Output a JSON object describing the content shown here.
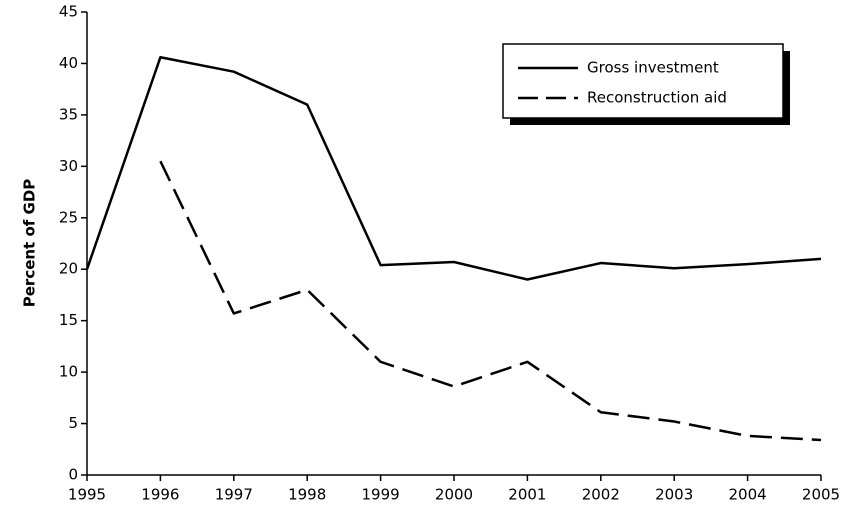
{
  "chart_data": {
    "type": "line",
    "ylabel": "Percent of GDP",
    "x": [
      1995,
      1996,
      1997,
      1998,
      1999,
      2000,
      2001,
      2002,
      2003,
      2004,
      2005
    ],
    "series": [
      {
        "name": "Gross investment",
        "color": "#000000",
        "dash": "solid",
        "values": [
          20,
          40.6,
          39.2,
          36,
          20.4,
          20.7,
          19,
          20.6,
          20.1,
          20.5,
          21
        ]
      },
      {
        "name": "Reconstruction aid",
        "color": "#000000",
        "dash": "dashed",
        "values": [
          null,
          30.5,
          15.7,
          18,
          11,
          8.6,
          11,
          6.1,
          5.2,
          3.8,
          3.4
        ]
      }
    ],
    "xlim": [
      1995,
      2005
    ],
    "xticks": [
      1995,
      1996,
      1997,
      1998,
      1999,
      2000,
      2001,
      2002,
      2003,
      2004,
      2005
    ],
    "ylim": [
      0,
      45
    ],
    "yticks": [
      0,
      5,
      10,
      15,
      20,
      25,
      30,
      35,
      40,
      45
    ],
    "grid": false,
    "legend": "upper right"
  }
}
